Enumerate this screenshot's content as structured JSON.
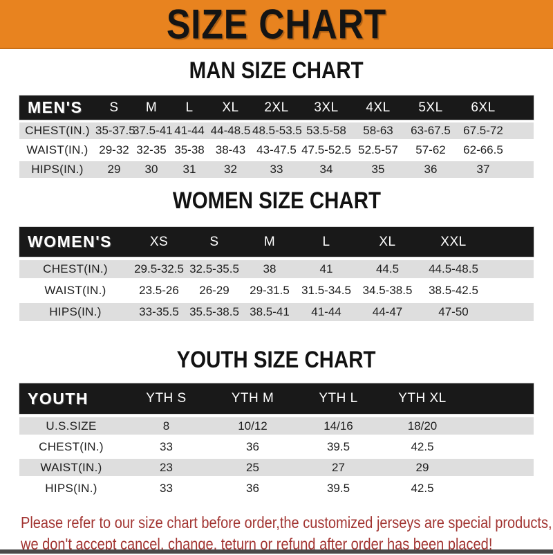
{
  "banner": {
    "title": "SIZE CHART"
  },
  "tables": [
    {
      "title": "MAN SIZE CHART",
      "header": [
        "MEN'S",
        "S",
        "M",
        "L",
        "XL",
        "2XL",
        "3XL",
        "4XL",
        "5XL",
        "6XL"
      ],
      "rows": [
        {
          "label": "CHEST(IN.)",
          "values": [
            "35-37.5",
            "37.5-41",
            "41-44",
            "44-48.5",
            "48.5-53.5",
            "53.5-58",
            "58-63",
            "63-67.5",
            "67.5-72"
          ]
        },
        {
          "label": "WAIST(IN.)",
          "values": [
            "29-32",
            "32-35",
            "35-38",
            "38-43",
            "43-47.5",
            "47.5-52.5",
            "52.5-57",
            "57-62",
            "62-66.5"
          ]
        },
        {
          "label": "HIPS(IN.)",
          "values": [
            "29",
            "30",
            "31",
            "32",
            "33",
            "34",
            "35",
            "36",
            "37"
          ]
        }
      ]
    },
    {
      "title": "WOMEN SIZE CHART",
      "header": [
        "WOMEN'S",
        "XS",
        "S",
        "M",
        "L",
        "XL",
        "XXL"
      ],
      "rows": [
        {
          "label": "CHEST(IN.)",
          "values": [
            "29.5-32.5",
            "32.5-35.5",
            "38",
            "41",
            "44.5",
            "44.5-48.5"
          ]
        },
        {
          "label": "WAIST(IN.)",
          "values": [
            "23.5-26",
            "26-29",
            "29-31.5",
            "31.5-34.5",
            "34.5-38.5",
            "38.5-42.5"
          ]
        },
        {
          "label": "HIPS(IN.)",
          "values": [
            "33-35.5",
            "35.5-38.5",
            "38.5-41",
            "41-44",
            "44-47",
            "47-50"
          ]
        }
      ]
    },
    {
      "title": "YOUTH SIZE CHART",
      "header": [
        "YOUTH",
        "YTH S",
        "YTH M",
        "YTH L",
        "YTH XL"
      ],
      "rows": [
        {
          "label": "U.S.SIZE",
          "values": [
            "8",
            "10/12",
            "14/16",
            "18/20"
          ]
        },
        {
          "label": "CHEST(IN.)",
          "values": [
            "33",
            "36",
            "39.5",
            "42.5"
          ]
        },
        {
          "label": "WAIST(IN.)",
          "values": [
            "23",
            "25",
            "27",
            "29"
          ]
        },
        {
          "label": "HIPS(IN.)",
          "values": [
            "33",
            "36",
            "39.5",
            "42.5"
          ]
        }
      ]
    }
  ],
  "footer": {
    "line1": "Please refer to our size chart before order,the customized jerseys are special products,",
    "line2": "we don't accept cancel, change, teturn or refund after order has been placed!"
  },
  "colors": {
    "banner_bg": "#E8831F",
    "bar_bg": "#191919",
    "row_alt_bg": "#DEDEDE",
    "footer_text": "#A23431"
  }
}
